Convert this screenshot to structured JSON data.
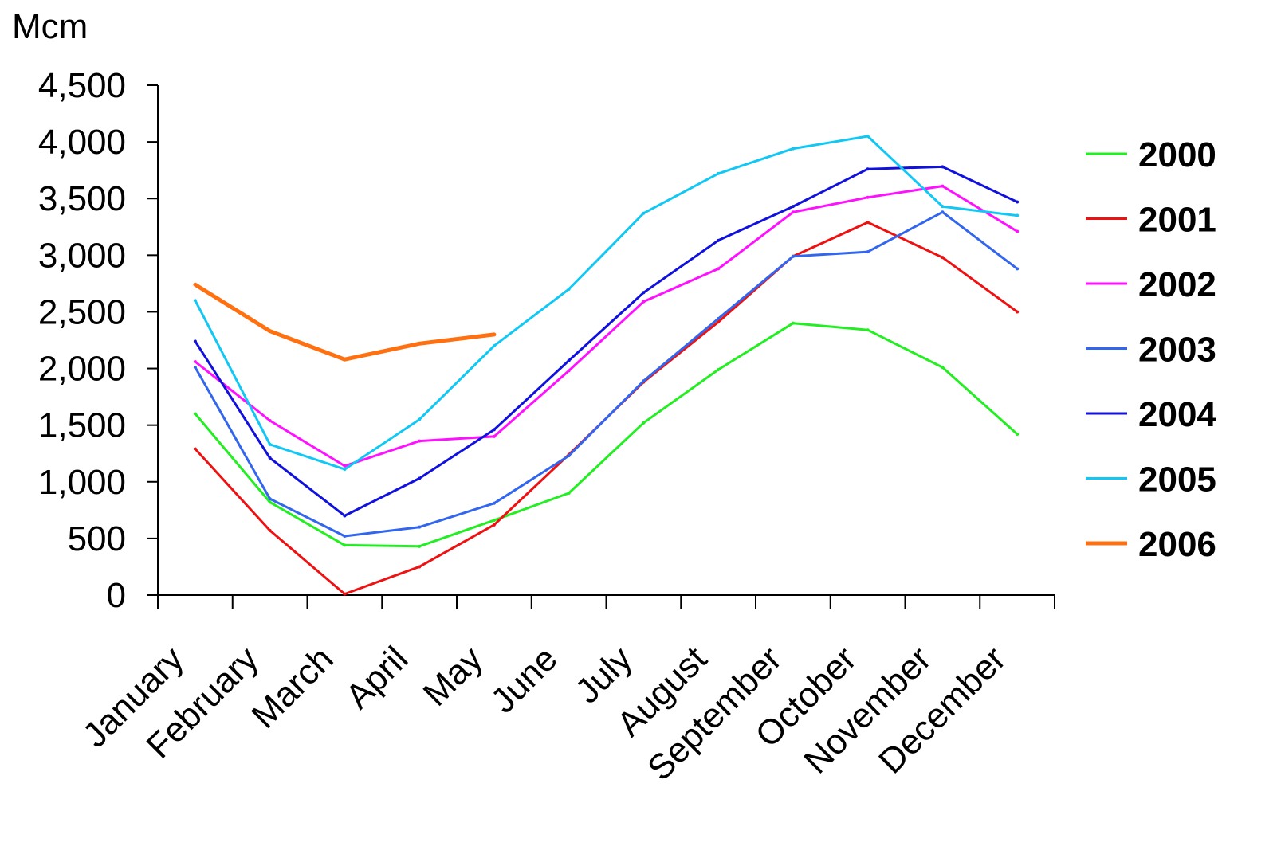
{
  "chart_data": {
    "type": "line",
    "title": "",
    "xlabel": "",
    "ylabel": "Mcm",
    "ylim": [
      0,
      4500
    ],
    "yticks": [
      0,
      500,
      1000,
      1500,
      2000,
      2500,
      3000,
      3500,
      4000,
      4500
    ],
    "ytick_labels": [
      "0",
      "500",
      "1,000",
      "1,500",
      "2,000",
      "2,500",
      "3,000",
      "3,500",
      "4,000",
      "4,500"
    ],
    "categories": [
      "January",
      "February",
      "March",
      "April",
      "May",
      "June",
      "July",
      "August",
      "September",
      "October",
      "November",
      "December"
    ],
    "grid": false,
    "legend_position": "right",
    "series": [
      {
        "name": "2000",
        "color": "#22ee22",
        "width": 3,
        "values": [
          1600,
          820,
          440,
          430,
          660,
          900,
          1520,
          1990,
          2400,
          2340,
          2010,
          1420
        ]
      },
      {
        "name": "2001",
        "color": "#ee1111",
        "width": 3,
        "values": [
          1290,
          570,
          10,
          250,
          620,
          1240,
          1880,
          2410,
          2990,
          3290,
          2980,
          2500
        ]
      },
      {
        "name": "2002",
        "color": "#ff11ff",
        "width": 3,
        "values": [
          2060,
          1540,
          1140,
          1360,
          1400,
          1980,
          2590,
          2880,
          3380,
          3510,
          3610,
          3210
        ]
      },
      {
        "name": "2003",
        "color": "#3366ee",
        "width": 3,
        "values": [
          2010,
          850,
          520,
          600,
          810,
          1230,
          1890,
          2440,
          2990,
          3030,
          3380,
          2880
        ]
      },
      {
        "name": "2004",
        "color": "#1111dd",
        "width": 3,
        "values": [
          2240,
          1210,
          700,
          1030,
          1460,
          2070,
          2670,
          3130,
          3430,
          3760,
          3780,
          3470
        ]
      },
      {
        "name": "2005",
        "color": "#11c8f5",
        "width": 3,
        "values": [
          2600,
          1330,
          1110,
          1550,
          2200,
          2700,
          3370,
          3720,
          3940,
          4050,
          3430,
          3350
        ]
      },
      {
        "name": "2006",
        "color": "#ff7010",
        "width": 5,
        "values": [
          2740,
          2330,
          2080,
          2220,
          2300,
          null,
          null,
          null,
          null,
          null,
          null,
          null
        ]
      }
    ]
  }
}
